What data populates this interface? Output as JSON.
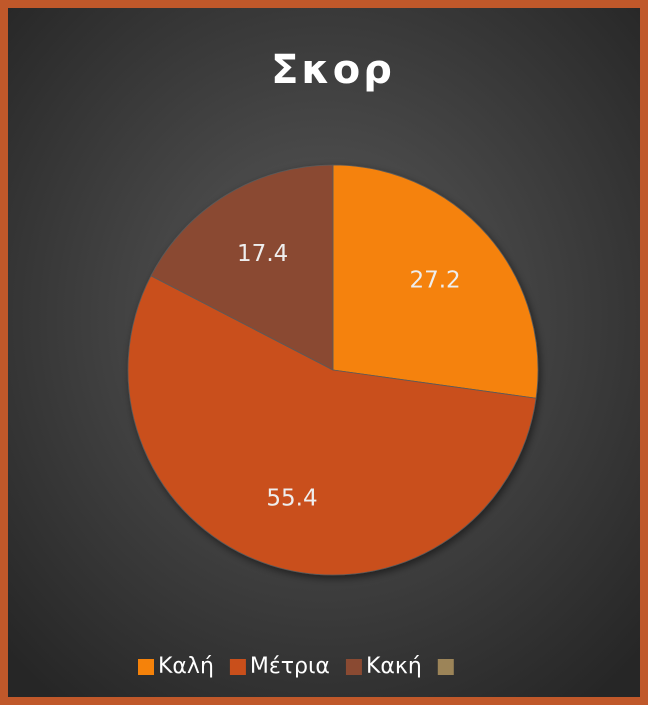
{
  "chart_data": {
    "type": "pie",
    "title": "Σκορ",
    "categories": [
      "Καλή",
      "Μέτρια",
      "Κακή",
      null
    ],
    "values": [
      27.2,
      55.4,
      17.4,
      null
    ],
    "colors": [
      "#f5820a",
      "#c94f1b",
      "#8a4a32",
      "#9c8458"
    ],
    "legend": "bottom"
  }
}
